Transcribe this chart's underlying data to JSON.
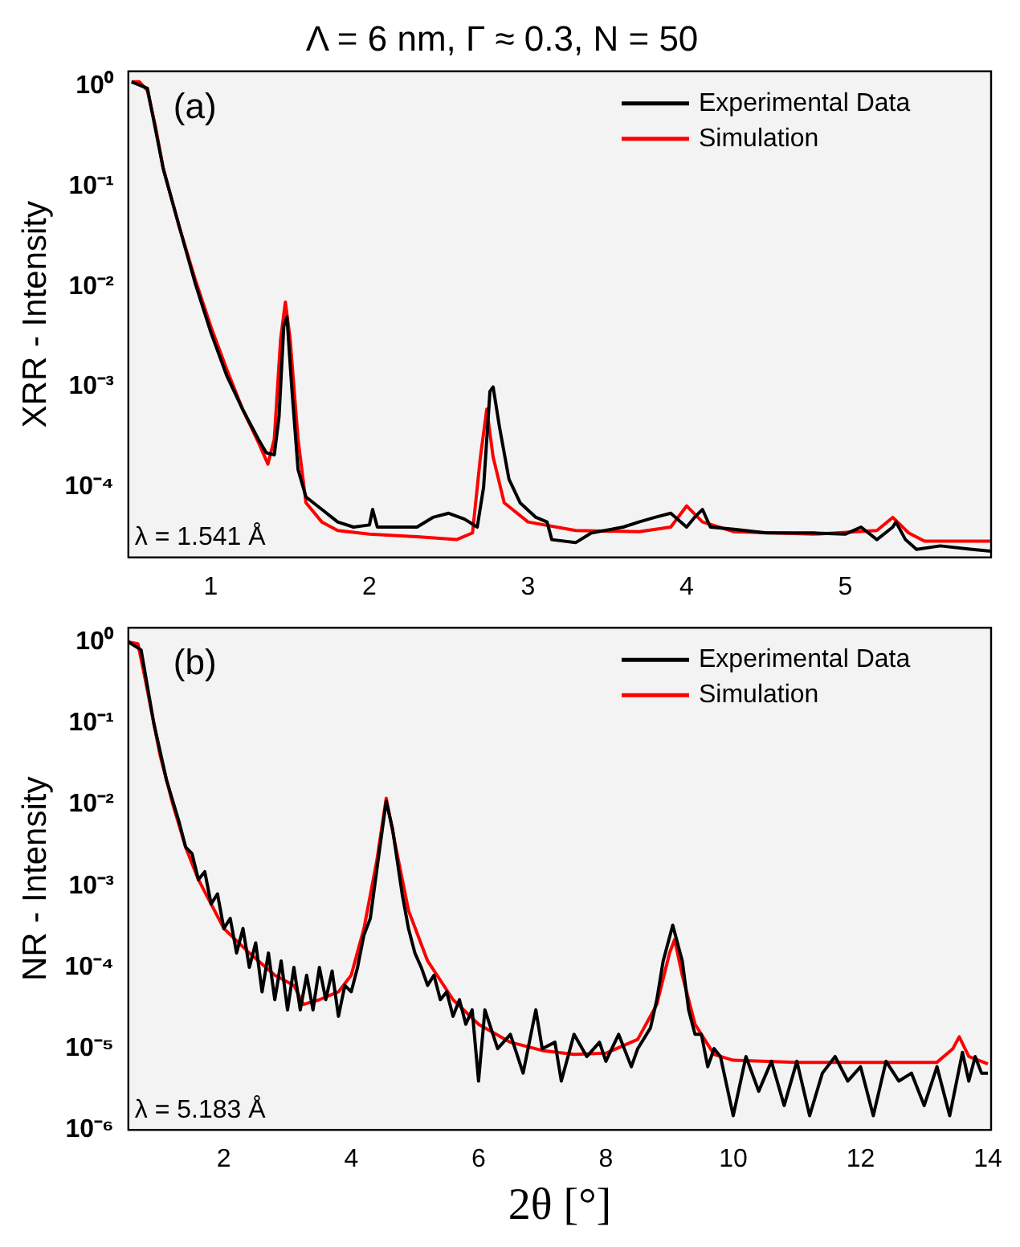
{
  "chart_data": [
    {
      "type": "line",
      "title": "Λ = 6 nm, Γ ≈ 0.3, N = 50",
      "ylabel": "XRR - Intensity",
      "annotations": [
        "(a)",
        "λ = 1.541 Å"
      ],
      "log": "y",
      "grid": false,
      "legend": "top right",
      "marker": "none",
      "line_style": "solid",
      "xlim": [
        0.48,
        5.92
      ],
      "xticks": [
        1,
        2,
        3,
        4,
        5
      ],
      "ylim": [
        2e-05,
        1.4
      ],
      "yticks": [
        {
          "value": 1,
          "label": "10⁰"
        },
        {
          "value": 0.1,
          "label": "10⁻¹"
        },
        {
          "value": 0.01,
          "label": "10⁻²"
        },
        {
          "value": 0.001,
          "label": "10⁻³"
        },
        {
          "value": 0.0001,
          "label": "10⁻⁴"
        }
      ],
      "series": [
        {
          "name": "Experimental Data",
          "color": "#000000",
          "x": [
            0.5,
            0.6,
            0.7,
            0.8,
            0.9,
            1.0,
            1.1,
            1.2,
            1.3,
            1.35,
            1.4,
            1.43,
            1.46,
            1.48,
            1.51,
            1.55,
            1.6,
            1.7,
            1.8,
            1.9,
            2.0,
            2.02,
            2.05,
            2.2,
            2.3,
            2.4,
            2.5,
            2.6,
            2.68,
            2.72,
            2.76,
            2.78,
            2.82,
            2.88,
            2.95,
            3.05,
            3.12,
            3.15,
            3.3,
            3.4,
            3.6,
            3.7,
            3.8,
            3.9,
            4.0,
            4.05,
            4.1,
            4.15,
            4.3,
            4.5,
            4.8,
            5.0,
            5.1,
            5.2,
            5.3,
            5.32,
            5.38,
            5.45,
            5.6,
            5.8,
            5.92
          ],
          "values": [
            1.1,
            0.95,
            0.15,
            0.04,
            0.011,
            0.0035,
            0.0013,
            0.0006,
            0.0003,
            0.00022,
            0.00021,
            0.0005,
            0.004,
            0.005,
            0.001,
            0.00015,
            8e-05,
            6e-05,
            4.5e-05,
            4e-05,
            4.2e-05,
            6e-05,
            4e-05,
            4e-05,
            4e-05,
            5e-05,
            5.5e-05,
            4.8e-05,
            4e-05,
            0.0001,
            0.0009,
            0.001,
            0.0004,
            0.00012,
            7e-05,
            5e-05,
            4.5e-05,
            3e-05,
            2.8e-05,
            3.5e-05,
            4e-05,
            4.5e-05,
            5e-05,
            5.5e-05,
            4e-05,
            5e-05,
            6e-05,
            4e-05,
            3.8e-05,
            3.5e-05,
            3.5e-05,
            3.4e-05,
            4e-05,
            3e-05,
            4e-05,
            4.5e-05,
            3e-05,
            2.4e-05,
            2.6e-05,
            2.4e-05,
            2.3e-05
          ]
        },
        {
          "name": "Simulation",
          "color": "#ff0000",
          "x": [
            0.5,
            0.55,
            0.6,
            0.65,
            0.7,
            0.8,
            0.9,
            1.0,
            1.1,
            1.2,
            1.3,
            1.36,
            1.4,
            1.44,
            1.47,
            1.5,
            1.55,
            1.6,
            1.7,
            1.8,
            2.0,
            2.3,
            2.55,
            2.65,
            2.7,
            2.74,
            2.78,
            2.85,
            3.0,
            3.3,
            3.7,
            3.9,
            4.0,
            4.1,
            4.3,
            4.8,
            5.2,
            5.3,
            5.4,
            5.5,
            5.92
          ],
          "values": [
            1.1,
            1.1,
            0.9,
            0.4,
            0.15,
            0.04,
            0.012,
            0.004,
            0.0015,
            0.0006,
            0.00028,
            0.00017,
            0.0003,
            0.003,
            0.007,
            0.003,
            0.0003,
            7e-05,
            4.5e-05,
            3.7e-05,
            3.4e-05,
            3.2e-05,
            3e-05,
            3.5e-05,
            0.0002,
            0.0006,
            0.0002,
            7e-05,
            4.5e-05,
            3.7e-05,
            3.6e-05,
            4e-05,
            6.5e-05,
            4.5e-05,
            3.6e-05,
            3.4e-05,
            3.7e-05,
            5e-05,
            3.5e-05,
            2.9e-05,
            2.9e-05
          ]
        }
      ]
    },
    {
      "type": "line",
      "xlabel": "2θ [°]",
      "ylabel": "NR - Intensity",
      "annotations": [
        "(b)",
        "λ = 5.183 Å"
      ],
      "log": "y",
      "grid": false,
      "legend": "top right",
      "marker": "none",
      "line_style": "solid",
      "xlim": [
        0.5,
        14.05
      ],
      "xticks": [
        2,
        4,
        6,
        8,
        10,
        12,
        14
      ],
      "ylim": [
        1e-06,
        1.5
      ],
      "yticks": [
        {
          "value": 1,
          "label": "10⁰"
        },
        {
          "value": 0.1,
          "label": "10⁻¹"
        },
        {
          "value": 0.01,
          "label": "10⁻²"
        },
        {
          "value": 0.001,
          "label": "10⁻³"
        },
        {
          "value": 0.0001,
          "label": "10⁻⁴"
        },
        {
          "value": 1e-05,
          "label": "10⁻⁵"
        },
        {
          "value": 1e-06,
          "label": "10⁻⁶"
        }
      ],
      "series": [
        {
          "name": "Experimental Data",
          "color": "#000000",
          "x": [
            0.5,
            0.7,
            0.9,
            1.1,
            1.3,
            1.4,
            1.5,
            1.6,
            1.7,
            1.8,
            1.9,
            2.0,
            2.1,
            2.2,
            2.3,
            2.4,
            2.5,
            2.6,
            2.7,
            2.8,
            2.9,
            3.0,
            3.1,
            3.2,
            3.3,
            3.4,
            3.5,
            3.6,
            3.7,
            3.8,
            3.9,
            4.0,
            4.1,
            4.2,
            4.3,
            4.45,
            4.55,
            4.65,
            4.8,
            4.9,
            5.0,
            5.1,
            5.2,
            5.3,
            5.4,
            5.5,
            5.6,
            5.7,
            5.8,
            5.9,
            6.0,
            6.1,
            6.3,
            6.5,
            6.7,
            6.9,
            7.0,
            7.2,
            7.3,
            7.5,
            7.7,
            7.9,
            8.0,
            8.2,
            8.4,
            8.5,
            8.7,
            8.8,
            8.9,
            9.05,
            9.2,
            9.3,
            9.4,
            9.5,
            9.6,
            9.7,
            9.8,
            10.0,
            10.2,
            10.4,
            10.6,
            10.8,
            11.0,
            11.2,
            11.4,
            11.6,
            11.8,
            12.0,
            12.2,
            12.4,
            12.6,
            12.8,
            13.0,
            13.2,
            13.4,
            13.6,
            13.7,
            13.8,
            13.9,
            14.0
          ],
          "values": [
            1.0,
            0.8,
            0.1,
            0.02,
            0.006,
            0.003,
            0.0025,
            0.0012,
            0.0015,
            0.0006,
            0.0008,
            0.0003,
            0.0004,
            0.00015,
            0.0003,
            0.0001,
            0.0002,
            5e-05,
            0.00015,
            4e-05,
            0.00012,
            3e-05,
            0.0001,
            3e-05,
            8e-05,
            3e-05,
            0.0001,
            4e-05,
            9e-05,
            2.5e-05,
            6e-05,
            5e-05,
            0.0001,
            0.00025,
            0.0004,
            0.003,
            0.011,
            0.005,
            0.0008,
            0.0003,
            0.00015,
            0.0001,
            6e-05,
            8e-05,
            4e-05,
            5e-05,
            2.5e-05,
            4e-05,
            2e-05,
            3e-05,
            4e-06,
            3e-05,
            1e-05,
            1.5e-05,
            5e-06,
            3e-05,
            1e-05,
            1.2e-05,
            4e-06,
            1.5e-05,
            8e-06,
            1.2e-05,
            7e-06,
            1.5e-05,
            6e-06,
            1e-05,
            1.8e-05,
            4e-05,
            0.00012,
            0.00033,
            0.00012,
            3e-05,
            1.5e-05,
            1.5e-05,
            6e-06,
            1e-05,
            8e-06,
            1.5e-06,
            8e-06,
            3e-06,
            7e-06,
            2e-06,
            7e-06,
            1.5e-06,
            5e-06,
            8e-06,
            4e-06,
            6e-06,
            1.5e-06,
            7e-06,
            4e-06,
            5e-06,
            2e-06,
            6e-06,
            1.5e-06,
            9e-06,
            4e-06,
            8e-06,
            5e-06,
            5e-06
          ]
        },
        {
          "name": "Simulation",
          "color": "#ff0000",
          "x": [
            0.5,
            0.65,
            0.75,
            0.9,
            1.0,
            1.2,
            1.4,
            1.6,
            1.8,
            2.0,
            2.4,
            2.8,
            3.1,
            3.25,
            3.5,
            3.8,
            4.0,
            4.2,
            4.4,
            4.55,
            4.7,
            4.9,
            5.2,
            5.6,
            6.0,
            6.5,
            7.0,
            7.5,
            8.0,
            8.5,
            8.8,
            9.0,
            9.08,
            9.2,
            9.4,
            9.7,
            10,
            11,
            12,
            13.2,
            13.45,
            13.55,
            13.7,
            14
          ],
          "values": [
            1.0,
            0.95,
            0.4,
            0.1,
            0.04,
            0.01,
            0.003,
            0.0012,
            0.0006,
            0.0003,
            0.00015,
            8e-05,
            6e-05,
            3.5e-05,
            4e-05,
            5e-05,
            8e-05,
            0.0003,
            0.002,
            0.012,
            0.003,
            0.0005,
            0.00012,
            4e-05,
            2e-05,
            1.2e-05,
            9.5e-06,
            8.5e-06,
            8.8e-06,
            1.3e-05,
            3.5e-05,
            0.00015,
            0.00022,
            8e-05,
            2e-05,
            8.5e-06,
            7.2e-06,
            6.8e-06,
            6.8e-06,
            6.8e-06,
            1e-05,
            1.4e-05,
            8e-06,
            6.5e-06
          ]
        }
      ]
    }
  ]
}
